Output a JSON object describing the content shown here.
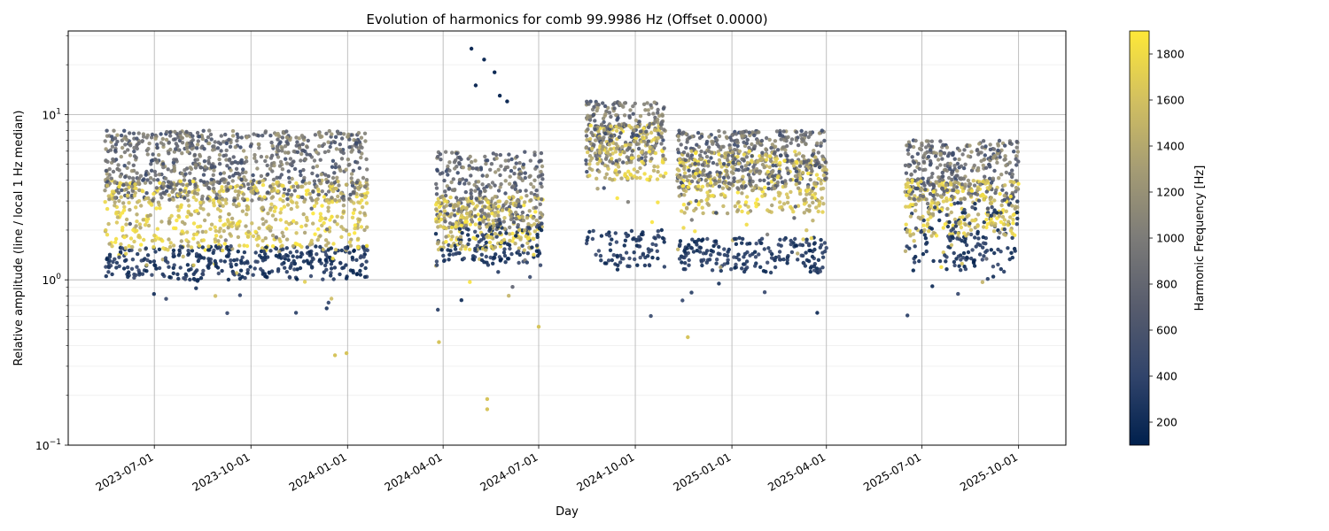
{
  "chart_data": {
    "type": "scatter",
    "title": "Evolution of harmonics for comb 99.9986 Hz (Offset 0.0000)",
    "xlabel": "Day",
    "ylabel": "Relative amplitude (line / local 1 Hz median)",
    "yscale": "log",
    "ylim": [
      0.1,
      32
    ],
    "xlim": [
      "2023-04-10",
      "2025-11-15"
    ],
    "x_ticks": [
      "2023-07-01",
      "2023-10-01",
      "2024-01-01",
      "2024-04-01",
      "2024-07-01",
      "2024-10-01",
      "2025-01-01",
      "2025-04-01",
      "2025-07-01",
      "2025-10-01"
    ],
    "y_ticks": [
      {
        "value": 0.1,
        "base": "10",
        "exp": "−1"
      },
      {
        "value": 1,
        "base": "10",
        "exp": "0"
      },
      {
        "value": 10,
        "base": "10",
        "exp": "1"
      }
    ],
    "grid": true,
    "colorbar": {
      "label": "Harmonic Frequency [Hz]",
      "range": [
        100,
        1900
      ],
      "ticks": [
        200,
        400,
        600,
        800,
        1000,
        1200,
        1400,
        1600,
        1800
      ],
      "colormap": [
        "#00204d",
        "#31446b",
        "#575c6d",
        "#7c7b78",
        "#a59c74",
        "#d2c060",
        "#fee838"
      ]
    },
    "segments": [
      {
        "start": "2023-05-15",
        "end": "2024-01-20",
        "low_band": [
          1.0,
          1.6
        ],
        "mid_band": [
          1.5,
          4.0
        ],
        "high_band": [
          3.0,
          8.0
        ]
      },
      {
        "start": "2024-03-25",
        "end": "2024-07-05",
        "low_band": [
          1.2,
          2.2
        ],
        "mid_band": [
          1.5,
          3.2
        ],
        "high_band": [
          2.0,
          6.0
        ]
      },
      {
        "start": "2024-08-15",
        "end": "2024-10-30",
        "low_band": [
          1.2,
          2.0
        ],
        "mid_band": [
          4.0,
          9.0
        ],
        "high_band": [
          5.0,
          12.0
        ]
      },
      {
        "start": "2024-11-10",
        "end": "2025-04-01",
        "low_band": [
          1.1,
          1.8
        ],
        "mid_band": [
          2.5,
          6.0
        ],
        "high_band": [
          3.5,
          8.0
        ]
      },
      {
        "start": "2025-06-15",
        "end": "2025-10-01",
        "low_band": [
          1.1,
          3.0
        ],
        "mid_band": [
          1.8,
          4.0
        ],
        "high_band": [
          3.0,
          7.0
        ]
      }
    ],
    "outliers": [
      {
        "x": "2024-04-28",
        "y": 25.0
      },
      {
        "x": "2024-05-10",
        "y": 21.5
      },
      {
        "x": "2024-05-20",
        "y": 18.0
      },
      {
        "x": "2024-05-02",
        "y": 15.0
      },
      {
        "x": "2024-05-25",
        "y": 13.0
      },
      {
        "x": "2024-06-01",
        "y": 12.0
      },
      {
        "x": "2024-05-13",
        "y": 0.19
      },
      {
        "x": "2024-05-13",
        "y": 0.165
      },
      {
        "x": "2024-07-01",
        "y": 0.52
      },
      {
        "x": "2024-11-20",
        "y": 0.45
      },
      {
        "x": "2024-03-28",
        "y": 0.42
      },
      {
        "x": "2023-12-31",
        "y": 0.36
      },
      {
        "x": "2023-12-20",
        "y": 0.35
      }
    ]
  }
}
